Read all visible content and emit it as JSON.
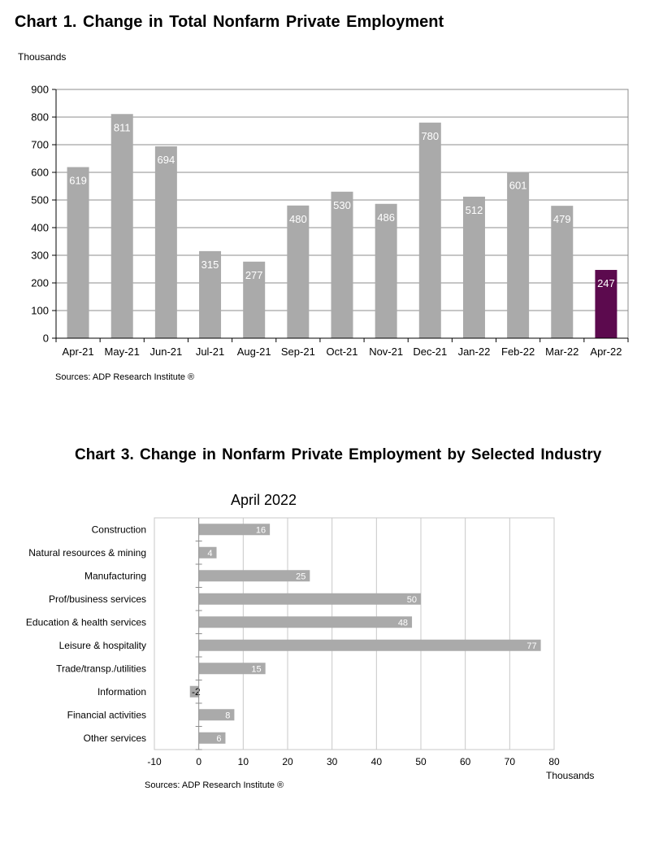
{
  "chart_data": [
    {
      "type": "bar",
      "title": "Chart 1. Change in Total Nonfarm Private Employment",
      "ylabel": "Thousands",
      "xlabel": "",
      "ylim": [
        0,
        900
      ],
      "yticks": [
        0,
        100,
        200,
        300,
        400,
        500,
        600,
        700,
        800,
        900
      ],
      "categories": [
        "Apr-21",
        "May-21",
        "Jun-21",
        "Jul-21",
        "Aug-21",
        "Sep-21",
        "Oct-21",
        "Nov-21",
        "Dec-21",
        "Jan-22",
        "Feb-22",
        "Mar-22",
        "Apr-22"
      ],
      "values": [
        619,
        811,
        694,
        315,
        277,
        480,
        530,
        486,
        780,
        512,
        601,
        479,
        247
      ],
      "highlight_index": 12,
      "bar_color": "#aaaaaa",
      "highlight_color": "#5c0a4e",
      "grid": true,
      "source": "Sources: ADP Research Institute ®"
    },
    {
      "type": "bar",
      "orientation": "horizontal",
      "title": "Chart 3. Change in Nonfarm Private Employment by Selected Industry",
      "subtitle": "April 2022",
      "xlabel": "Thousands",
      "ylabel": "",
      "xlim": [
        -10,
        80
      ],
      "xticks": [
        -10,
        0,
        10,
        20,
        30,
        40,
        50,
        60,
        70,
        80
      ],
      "categories": [
        "Construction",
        "Natural resources & mining",
        "Manufacturing",
        "Prof/business services",
        "Education & health services",
        "Leisure & hospitality",
        "Trade/transp./utilities",
        "Information",
        "Financial activities",
        "Other services"
      ],
      "values": [
        16,
        4,
        25,
        50,
        48,
        77,
        15,
        -2,
        8,
        6
      ],
      "bar_color": "#aaaaaa",
      "grid": true,
      "source": "Sources: ADP Research Institute ®"
    }
  ]
}
